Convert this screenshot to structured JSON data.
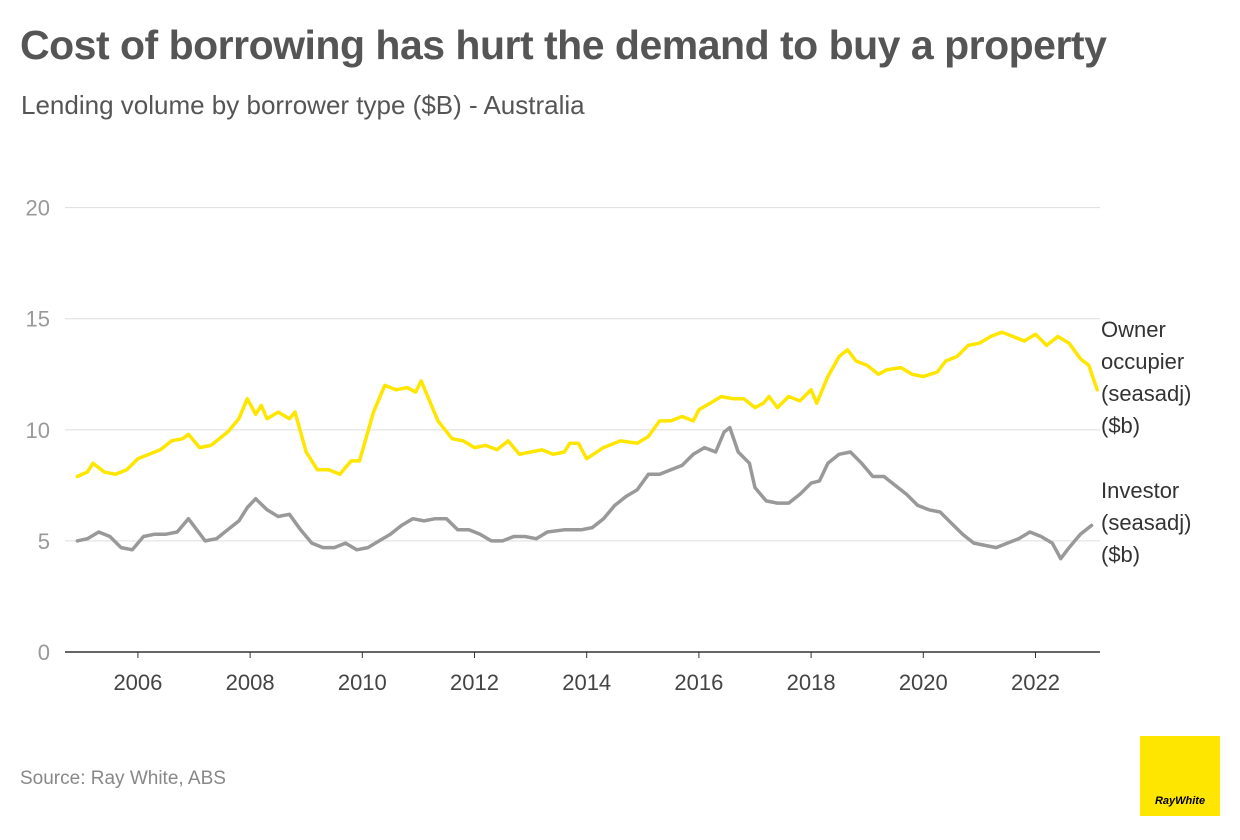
{
  "title": "Cost of borrowing has hurt the demand to buy a property",
  "subtitle": "Lending volume by borrower type ($B) - Australia",
  "source": "Source: Ray White, ABS",
  "logo": {
    "text": "RayWhite",
    "color": "#FFE600"
  },
  "colors": {
    "owner": "#FFE600",
    "investor": "#999999",
    "grid": "#dddddd",
    "axis": "#333333"
  },
  "chart_data": {
    "type": "line",
    "title": "",
    "xlabel": "",
    "ylabel": "",
    "xlim": [
      2004.7,
      2023.15
    ],
    "ylim": [
      0,
      23
    ],
    "grid": true,
    "legend": "right, labels at line ends",
    "yticks": [
      0,
      5,
      10,
      15,
      20
    ],
    "xticks": [
      2006,
      2008,
      2010,
      2012,
      2014,
      2016,
      2018,
      2020,
      2022
    ],
    "series": [
      {
        "name": "Owner occupier (seasadj) ($b)",
        "label_lines": [
          "Owner",
          "occupier",
          "(seasadj)",
          "($b)"
        ],
        "color": "#FFE600",
        "points": [
          [
            2004.92,
            7.9
          ],
          [
            2005.1,
            8.1
          ],
          [
            2005.2,
            8.5
          ],
          [
            2005.4,
            8.1
          ],
          [
            2005.6,
            8.0
          ],
          [
            2005.8,
            8.2
          ],
          [
            2006.0,
            8.7
          ],
          [
            2006.2,
            8.9
          ],
          [
            2006.4,
            9.1
          ],
          [
            2006.6,
            9.5
          ],
          [
            2006.8,
            9.6
          ],
          [
            2006.9,
            9.8
          ],
          [
            2007.1,
            9.2
          ],
          [
            2007.3,
            9.3
          ],
          [
            2007.6,
            9.9
          ],
          [
            2007.8,
            10.5
          ],
          [
            2007.95,
            11.4
          ],
          [
            2008.1,
            10.7
          ],
          [
            2008.2,
            11.1
          ],
          [
            2008.3,
            10.5
          ],
          [
            2008.5,
            10.8
          ],
          [
            2008.7,
            10.5
          ],
          [
            2008.8,
            10.8
          ],
          [
            2009.0,
            9.0
          ],
          [
            2009.2,
            8.2
          ],
          [
            2009.4,
            8.2
          ],
          [
            2009.6,
            8.0
          ],
          [
            2009.8,
            8.6
          ],
          [
            2009.95,
            8.6
          ],
          [
            2010.2,
            10.8
          ],
          [
            2010.4,
            12.0
          ],
          [
            2010.6,
            11.8
          ],
          [
            2010.8,
            11.9
          ],
          [
            2010.95,
            11.7
          ],
          [
            2011.05,
            12.2
          ],
          [
            2011.2,
            11.3
          ],
          [
            2011.35,
            10.4
          ],
          [
            2011.6,
            9.6
          ],
          [
            2011.8,
            9.5
          ],
          [
            2012.0,
            9.2
          ],
          [
            2012.2,
            9.3
          ],
          [
            2012.4,
            9.1
          ],
          [
            2012.6,
            9.5
          ],
          [
            2012.8,
            8.9
          ],
          [
            2013.0,
            9.0
          ],
          [
            2013.2,
            9.1
          ],
          [
            2013.4,
            8.9
          ],
          [
            2013.6,
            9.0
          ],
          [
            2013.7,
            9.4
          ],
          [
            2013.85,
            9.4
          ],
          [
            2014.0,
            8.7
          ],
          [
            2014.3,
            9.2
          ],
          [
            2014.6,
            9.5
          ],
          [
            2014.9,
            9.4
          ],
          [
            2015.1,
            9.7
          ],
          [
            2015.3,
            10.4
          ],
          [
            2015.5,
            10.4
          ],
          [
            2015.7,
            10.6
          ],
          [
            2015.9,
            10.4
          ],
          [
            2016.0,
            10.9
          ],
          [
            2016.2,
            11.2
          ],
          [
            2016.4,
            11.5
          ],
          [
            2016.6,
            11.4
          ],
          [
            2016.8,
            11.4
          ],
          [
            2017.0,
            11.0
          ],
          [
            2017.15,
            11.2
          ],
          [
            2017.25,
            11.5
          ],
          [
            2017.4,
            11.0
          ],
          [
            2017.6,
            11.5
          ],
          [
            2017.8,
            11.3
          ],
          [
            2018.0,
            11.8
          ],
          [
            2018.1,
            11.2
          ],
          [
            2018.3,
            12.4
          ],
          [
            2018.5,
            13.3
          ],
          [
            2018.65,
            13.6
          ],
          [
            2018.8,
            13.1
          ],
          [
            2019.0,
            12.9
          ],
          [
            2019.2,
            12.5
          ],
          [
            2019.35,
            12.7
          ],
          [
            2019.6,
            12.8
          ],
          [
            2019.8,
            12.5
          ],
          [
            2020.0,
            12.4
          ],
          [
            2020.25,
            12.6
          ],
          [
            2020.4,
            13.1
          ],
          [
            2020.6,
            13.3
          ],
          [
            2020.8,
            13.8
          ],
          [
            2021.0,
            13.9
          ],
          [
            2021.2,
            14.2
          ],
          [
            2021.4,
            14.4
          ],
          [
            2021.6,
            14.2
          ],
          [
            2021.8,
            14.0
          ],
          [
            2022.0,
            14.3
          ],
          [
            2022.2,
            13.8
          ],
          [
            2022.4,
            14.2
          ],
          [
            2022.6,
            13.9
          ],
          [
            2022.8,
            13.2
          ],
          [
            2022.95,
            12.9
          ],
          [
            2023.1,
            11.8
          ]
        ]
      },
      {
        "name": "Investor (seasadj) ($b)",
        "label_lines": [
          "Investor",
          "(seasadj)",
          "($b)"
        ],
        "color": "#999999",
        "points": [
          [
            2004.92,
            5.0
          ],
          [
            2005.1,
            5.1
          ],
          [
            2005.3,
            5.4
          ],
          [
            2005.5,
            5.2
          ],
          [
            2005.7,
            4.7
          ],
          [
            2005.9,
            4.6
          ],
          [
            2006.1,
            5.2
          ],
          [
            2006.3,
            5.3
          ],
          [
            2006.5,
            5.3
          ],
          [
            2006.7,
            5.4
          ],
          [
            2006.9,
            6.0
          ],
          [
            2007.05,
            5.5
          ],
          [
            2007.2,
            5.0
          ],
          [
            2007.4,
            5.1
          ],
          [
            2007.6,
            5.5
          ],
          [
            2007.8,
            5.9
          ],
          [
            2007.95,
            6.5
          ],
          [
            2008.1,
            6.9
          ],
          [
            2008.3,
            6.4
          ],
          [
            2008.5,
            6.1
          ],
          [
            2008.7,
            6.2
          ],
          [
            2008.9,
            5.5
          ],
          [
            2009.1,
            4.9
          ],
          [
            2009.3,
            4.7
          ],
          [
            2009.5,
            4.7
          ],
          [
            2009.7,
            4.9
          ],
          [
            2009.9,
            4.6
          ],
          [
            2010.1,
            4.7
          ],
          [
            2010.3,
            5.0
          ],
          [
            2010.5,
            5.3
          ],
          [
            2010.7,
            5.7
          ],
          [
            2010.9,
            6.0
          ],
          [
            2011.1,
            5.9
          ],
          [
            2011.3,
            6.0
          ],
          [
            2011.5,
            6.0
          ],
          [
            2011.7,
            5.5
          ],
          [
            2011.9,
            5.5
          ],
          [
            2012.1,
            5.3
          ],
          [
            2012.3,
            5.0
          ],
          [
            2012.5,
            5.0
          ],
          [
            2012.7,
            5.2
          ],
          [
            2012.9,
            5.2
          ],
          [
            2013.1,
            5.1
          ],
          [
            2013.3,
            5.4
          ],
          [
            2013.6,
            5.5
          ],
          [
            2013.9,
            5.5
          ],
          [
            2014.1,
            5.6
          ],
          [
            2014.3,
            6.0
          ],
          [
            2014.5,
            6.6
          ],
          [
            2014.7,
            7.0
          ],
          [
            2014.9,
            7.3
          ],
          [
            2015.1,
            8.0
          ],
          [
            2015.3,
            8.0
          ],
          [
            2015.5,
            8.2
          ],
          [
            2015.7,
            8.4
          ],
          [
            2015.9,
            8.9
          ],
          [
            2016.1,
            9.2
          ],
          [
            2016.3,
            9.0
          ],
          [
            2016.45,
            9.9
          ],
          [
            2016.55,
            10.1
          ],
          [
            2016.7,
            9.0
          ],
          [
            2016.9,
            8.5
          ],
          [
            2017.0,
            7.4
          ],
          [
            2017.2,
            6.8
          ],
          [
            2017.4,
            6.7
          ],
          [
            2017.6,
            6.7
          ],
          [
            2017.8,
            7.1
          ],
          [
            2018.0,
            7.6
          ],
          [
            2018.15,
            7.7
          ],
          [
            2018.3,
            8.5
          ],
          [
            2018.5,
            8.9
          ],
          [
            2018.7,
            9.0
          ],
          [
            2018.9,
            8.5
          ],
          [
            2019.1,
            7.9
          ],
          [
            2019.3,
            7.9
          ],
          [
            2019.5,
            7.5
          ],
          [
            2019.7,
            7.1
          ],
          [
            2019.9,
            6.6
          ],
          [
            2020.1,
            6.4
          ],
          [
            2020.3,
            6.3
          ],
          [
            2020.5,
            5.8
          ],
          [
            2020.7,
            5.3
          ],
          [
            2020.9,
            4.9
          ],
          [
            2021.1,
            4.8
          ],
          [
            2021.3,
            4.7
          ],
          [
            2021.5,
            4.9
          ],
          [
            2021.7,
            5.1
          ],
          [
            2021.9,
            5.4
          ],
          [
            2022.1,
            5.2
          ],
          [
            2022.3,
            4.9
          ],
          [
            2022.45,
            4.2
          ],
          [
            2022.6,
            4.7
          ],
          [
            2022.8,
            5.3
          ],
          [
            2023.0,
            5.7
          ]
        ]
      }
    ]
  }
}
